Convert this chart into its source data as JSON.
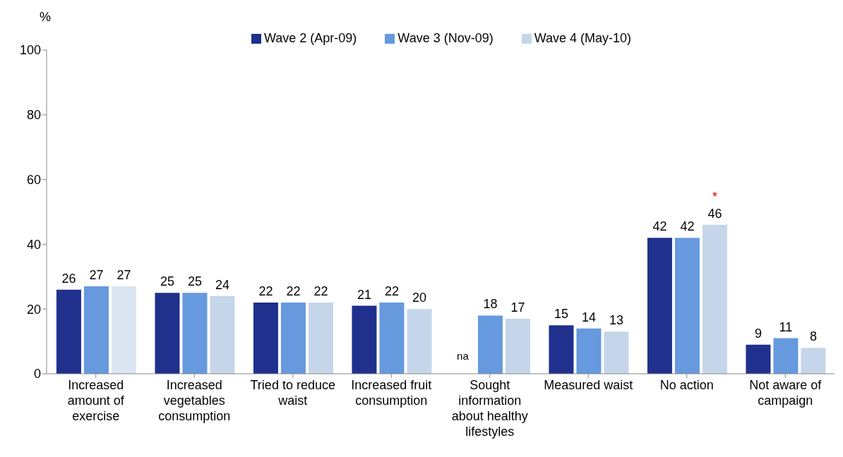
{
  "chart_data": {
    "type": "bar",
    "ylabel": "%",
    "categories": [
      "Increased amount of exercise",
      "Increased vegetables consumption",
      "Tried to reduce waist",
      "Increased fruit consumption",
      "Sought information about healthy lifestyles",
      "Measured waist",
      "No action",
      "Not aware of campaign"
    ],
    "series": [
      {
        "name": "Wave 2 (Apr-09)",
        "color": "#1f318c",
        "values": [
          26,
          25,
          22,
          21,
          null,
          15,
          42,
          9
        ],
        "value_labels": [
          "26",
          "25",
          "22",
          "21",
          "na",
          "15",
          "42",
          "9"
        ]
      },
      {
        "name": "Wave 3 (Nov-09)",
        "color": "#6699dd",
        "values": [
          27,
          25,
          22,
          22,
          18,
          14,
          42,
          11
        ],
        "value_labels": [
          "27",
          "25",
          "22",
          "22",
          "18",
          "14",
          "42",
          "11"
        ]
      },
      {
        "name": "Wave 4 (May-10)",
        "color": "#c6d6ea",
        "colors": [
          "#dce6f2",
          "#c6d6ea",
          "#c6d6ea",
          "#c6d6ea",
          "#c6d6ea",
          "#c6d6ea",
          "#c6d6ea",
          "#c6d6ea"
        ],
        "values": [
          27,
          24,
          22,
          20,
          17,
          13,
          46,
          8
        ],
        "value_labels": [
          "27",
          "24",
          "22",
          "20",
          "17",
          "13",
          "46",
          "8"
        ]
      }
    ],
    "annotations": [
      "*"
    ],
    "ylim": [
      0,
      100
    ],
    "yticks": [
      0,
      20,
      40,
      60,
      80,
      100
    ],
    "grid": false,
    "legend": "top"
  }
}
